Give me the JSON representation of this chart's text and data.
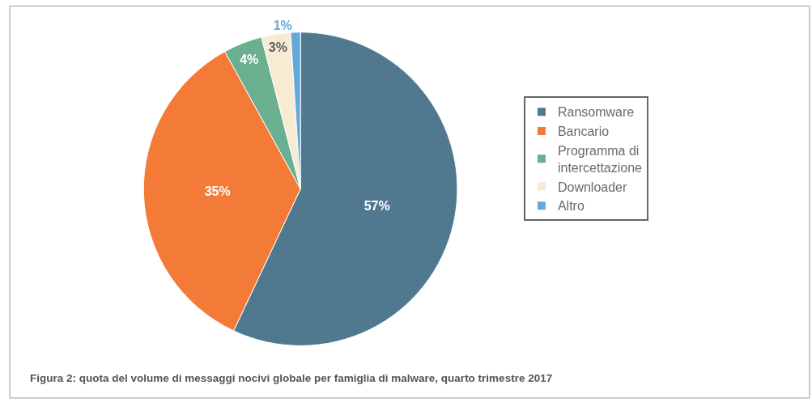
{
  "chart_data": {
    "type": "pie",
    "title": "Figura 2: quota del volume di messaggi nocivi globale per famiglia di malware, quarto trimestre 2017",
    "categories": [
      "Ransomware",
      "Bancario",
      "Programma di intercettazione",
      "Downloader",
      "Altro"
    ],
    "values": [
      57,
      35,
      4,
      3,
      1
    ],
    "colors": [
      "#50798f",
      "#f47a38",
      "#6aaf90",
      "#f8ebd3",
      "#64a9dc"
    ],
    "value_labels": [
      "57%",
      "35%",
      "4%",
      "3%",
      "1%"
    ],
    "legend": "right"
  }
}
